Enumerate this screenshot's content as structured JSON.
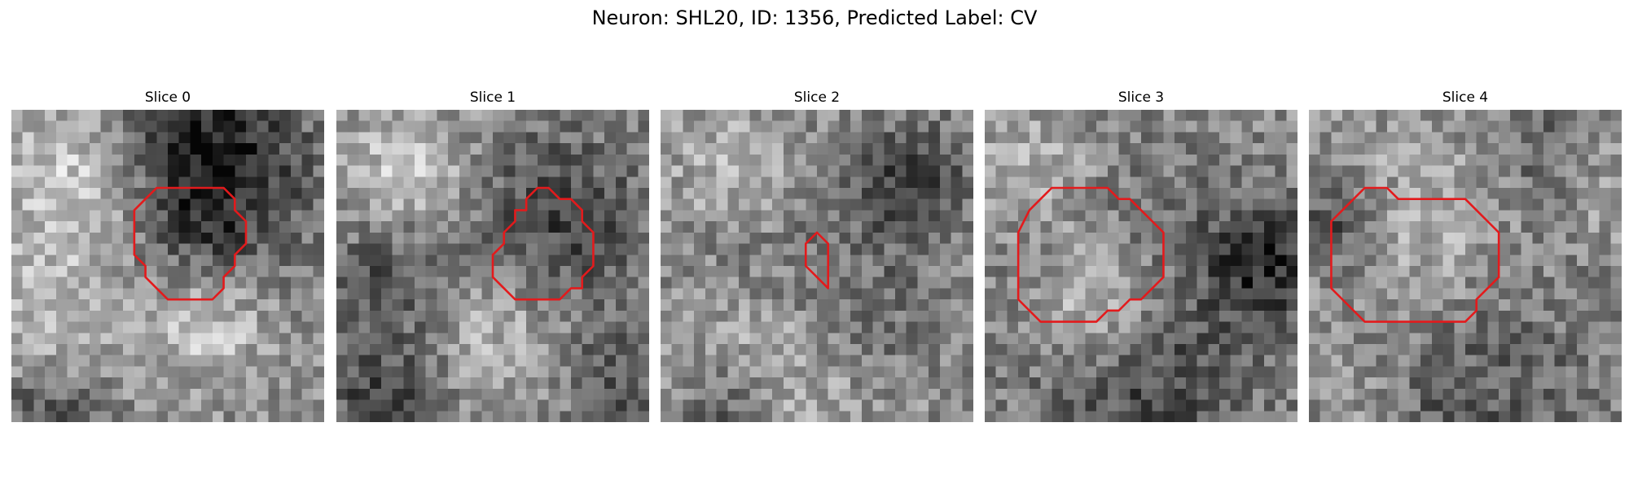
{
  "figure": {
    "title": "Neuron: SHL20, ID: 1356, Predicted Label: CV",
    "contour_color": "#e31a1c"
  },
  "panels": [
    {
      "title": "Slice 0",
      "contour": [
        [
          13,
          7
        ],
        [
          19,
          7
        ],
        [
          20,
          8
        ],
        [
          20,
          9
        ],
        [
          21,
          10
        ],
        [
          21,
          12
        ],
        [
          20,
          13
        ],
        [
          20,
          14
        ],
        [
          19,
          15
        ],
        [
          19,
          16
        ],
        [
          18,
          17
        ],
        [
          15,
          17
        ],
        [
          14,
          17
        ],
        [
          14,
          17
        ],
        [
          13,
          16
        ],
        [
          12,
          15
        ],
        [
          12,
          14
        ],
        [
          11,
          13
        ],
        [
          11,
          10
        ],
        [
          11,
          9
        ],
        [
          12,
          8
        ]
      ]
    },
    {
      "title": "Slice 1",
      "contour": [
        [
          18,
          7
        ],
        [
          19,
          7
        ],
        [
          20,
          8
        ],
        [
          21,
          8
        ],
        [
          22,
          9
        ],
        [
          22,
          10
        ],
        [
          23,
          11
        ],
        [
          23,
          13
        ],
        [
          23,
          14
        ],
        [
          22,
          15
        ],
        [
          22,
          16
        ],
        [
          21,
          16
        ],
        [
          20,
          17
        ],
        [
          17,
          17
        ],
        [
          16,
          17
        ],
        [
          15,
          16
        ],
        [
          14,
          15
        ],
        [
          14,
          14
        ],
        [
          14,
          13
        ],
        [
          15,
          12
        ],
        [
          15,
          11
        ],
        [
          16,
          10
        ],
        [
          16,
          9
        ],
        [
          17,
          9
        ],
        [
          17,
          8
        ]
      ]
    },
    {
      "title": "Slice 2",
      "contour": [
        [
          14,
          11
        ],
        [
          15,
          12
        ],
        [
          15,
          14
        ],
        [
          15,
          16
        ],
        [
          14,
          15
        ],
        [
          13,
          14
        ],
        [
          13,
          12
        ]
      ]
    },
    {
      "title": "Slice 3",
      "contour": [
        [
          6,
          7
        ],
        [
          11,
          7
        ],
        [
          12,
          8
        ],
        [
          13,
          8
        ],
        [
          14,
          9
        ],
        [
          15,
          10
        ],
        [
          16,
          11
        ],
        [
          16,
          13
        ],
        [
          16,
          15
        ],
        [
          15,
          16
        ],
        [
          14,
          17
        ],
        [
          13,
          17
        ],
        [
          12,
          18
        ],
        [
          11,
          18
        ],
        [
          10,
          19
        ],
        [
          5,
          19
        ],
        [
          4,
          18
        ],
        [
          3,
          17
        ],
        [
          3,
          16
        ],
        [
          3,
          15
        ],
        [
          3,
          11
        ],
        [
          4,
          9
        ],
        [
          5,
          8
        ]
      ]
    },
    {
      "title": "Slice 4",
      "contour": [
        [
          5,
          7
        ],
        [
          6,
          7
        ],
        [
          7,
          7
        ],
        [
          8,
          8
        ],
        [
          11,
          8
        ],
        [
          14,
          8
        ],
        [
          15,
          9
        ],
        [
          16,
          10
        ],
        [
          17,
          11
        ],
        [
          17,
          12
        ],
        [
          17,
          15
        ],
        [
          16,
          16
        ],
        [
          15,
          17
        ],
        [
          15,
          18
        ],
        [
          14,
          19
        ],
        [
          5,
          19
        ],
        [
          4,
          18
        ],
        [
          3,
          17
        ],
        [
          2,
          16
        ],
        [
          2,
          15
        ],
        [
          2,
          11
        ],
        [
          2,
          10
        ],
        [
          3,
          9
        ],
        [
          4,
          8
        ]
      ]
    }
  ]
}
